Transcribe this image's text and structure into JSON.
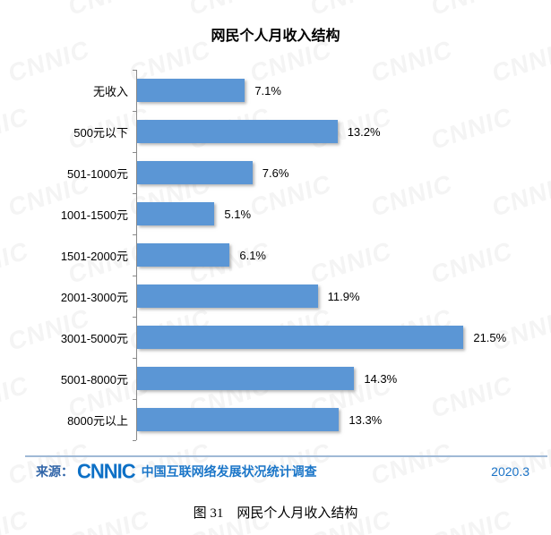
{
  "title": "网民个人月收入结构",
  "chart_data": {
    "type": "bar",
    "orientation": "horizontal",
    "title": "网民个人月收入结构",
    "categories": [
      "无收入",
      "500元以下",
      "501-1000元",
      "1001-1500元",
      "1501-2000元",
      "2001-3000元",
      "3001-5000元",
      "5001-8000元",
      "8000元以上"
    ],
    "values": [
      7.1,
      13.2,
      7.6,
      5.1,
      6.1,
      11.9,
      21.5,
      14.3,
      13.3
    ],
    "value_labels": [
      "7.1%",
      "13.2%",
      "7.6%",
      "5.1%",
      "6.1%",
      "11.9%",
      "21.5%",
      "14.3%",
      "13.3%"
    ],
    "xlabel": "",
    "ylabel": "",
    "xlim": [
      0,
      26.2
    ],
    "grid": false,
    "legend": false,
    "bar_color": "#5B96D5"
  },
  "footer": {
    "source_label": "来源：",
    "logo_text": "CNNIC",
    "survey_name": "中国互联网络发展状况统计调查",
    "date": "2020.3"
  },
  "caption": "图 31　网民个人月收入结构",
  "watermark_text": "CNNIC",
  "colors": {
    "bar": "#5B96D5",
    "axis": "#8a8a8a",
    "footer_line": "#9fb9d6",
    "source_label": "#2f64a8",
    "logo": "#0d70c6",
    "survey_name": "#1b76c8",
    "date": "#1a73c7",
    "watermark": "rgba(0,0,0,0.045)"
  }
}
